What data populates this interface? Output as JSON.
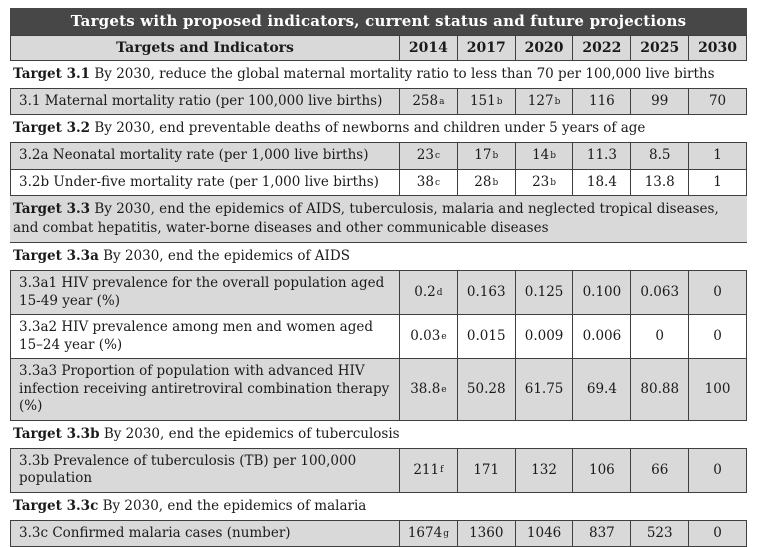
{
  "table": {
    "title": "Targets with proposed indicators, current status and future projections",
    "label_header": "Targets and Indicators",
    "year_headers": [
      "2014",
      "2017",
      "2020",
      "2022",
      "2025",
      "2030"
    ],
    "colors": {
      "title_bar_bg": "#474747",
      "title_text": "#ffffff",
      "shaded_row_bg": "#d9d9d9",
      "border": "#3f3f3f"
    },
    "rows": [
      {
        "type": "target",
        "shade": false,
        "bold": "Target 3.1",
        "text": "By 2030, reduce the global maternal mortality ratio to less than 70 per 100,000 live births"
      },
      {
        "type": "data",
        "shade": true,
        "label": "3.1 Maternal mortality ratio (per 100,000 live births)",
        "values": [
          {
            "v": "258",
            "sup": "a"
          },
          {
            "v": "151",
            "sup": "b"
          },
          {
            "v": "127",
            "sup": "b"
          },
          {
            "v": "116"
          },
          {
            "v": "99"
          },
          {
            "v": "70"
          }
        ]
      },
      {
        "type": "target",
        "shade": false,
        "bold": "Target 3.2",
        "text": "By 2030, end preventable deaths of newborns and children under 5 years of age"
      },
      {
        "type": "data",
        "shade": true,
        "label": "3.2a Neonatal mortality rate (per 1,000 live births)",
        "values": [
          {
            "v": "23",
            "sup": "c"
          },
          {
            "v": "17",
            "sup": "b"
          },
          {
            "v": "14",
            "sup": "b"
          },
          {
            "v": "11.3"
          },
          {
            "v": "8.5"
          },
          {
            "v": "1"
          }
        ]
      },
      {
        "type": "data",
        "shade": false,
        "label": "3.2b Under-five mortality rate (per 1,000 live births)",
        "values": [
          {
            "v": "38",
            "sup": "c"
          },
          {
            "v": "28",
            "sup": "b"
          },
          {
            "v": "23",
            "sup": "b"
          },
          {
            "v": "18.4"
          },
          {
            "v": "13.8"
          },
          {
            "v": "1"
          }
        ]
      },
      {
        "type": "target",
        "shade": true,
        "bold": "Target 3.3",
        "text": "By 2030, end the epidemics of AIDS, tuberculosis, malaria and neglected tropical diseases, and combat hepatitis, water-borne diseases and other communicable diseases"
      },
      {
        "type": "target",
        "shade": false,
        "bold": "Target 3.3a",
        "text": "By 2030, end the epidemics of AIDS"
      },
      {
        "type": "data",
        "shade": true,
        "label": "3.3a1 HIV prevalence for the overall population aged 15-49 year (%)",
        "values": [
          {
            "v": "0.2",
            "sup": "d"
          },
          {
            "v": "0.163"
          },
          {
            "v": "0.125"
          },
          {
            "v": "0.100"
          },
          {
            "v": "0.063"
          },
          {
            "v": "0"
          }
        ]
      },
      {
        "type": "data",
        "shade": false,
        "label": "3.3a2 HIV prevalence among men and women aged 15–24 year (%)",
        "values": [
          {
            "v": "0.03",
            "sup": "e"
          },
          {
            "v": "0.015"
          },
          {
            "v": "0.009"
          },
          {
            "v": "0.006"
          },
          {
            "v": "0"
          },
          {
            "v": "0"
          }
        ]
      },
      {
        "type": "data",
        "shade": true,
        "label": "3.3a3 Proportion of population with advanced HIV infection receiving antiretroviral combination therapy (%)",
        "values": [
          {
            "v": "38.8",
            "sup": "e"
          },
          {
            "v": "50.28"
          },
          {
            "v": "61.75"
          },
          {
            "v": "69.4"
          },
          {
            "v": "80.88"
          },
          {
            "v": "100"
          }
        ]
      },
      {
        "type": "target",
        "shade": false,
        "bold": "Target 3.3b",
        "text": "By 2030, end the epidemics of tuberculosis"
      },
      {
        "type": "data",
        "shade": true,
        "label": "3.3b Prevalence of tuberculosis (TB) per 100,000 population",
        "values": [
          {
            "v": "211",
            "sup": "f"
          },
          {
            "v": "171"
          },
          {
            "v": "132"
          },
          {
            "v": "106"
          },
          {
            "v": "66"
          },
          {
            "v": "0"
          }
        ]
      },
      {
        "type": "target",
        "shade": false,
        "bold": "Target 3.3c",
        "text": "By 2030, end the epidemics of malaria"
      },
      {
        "type": "data",
        "shade": true,
        "label": "3.3c Confirmed malaria cases (number)",
        "values": [
          {
            "v": "1674",
            "sup": "g"
          },
          {
            "v": "1360"
          },
          {
            "v": "1046"
          },
          {
            "v": "837"
          },
          {
            "v": "523"
          },
          {
            "v": "0"
          }
        ]
      }
    ]
  }
}
